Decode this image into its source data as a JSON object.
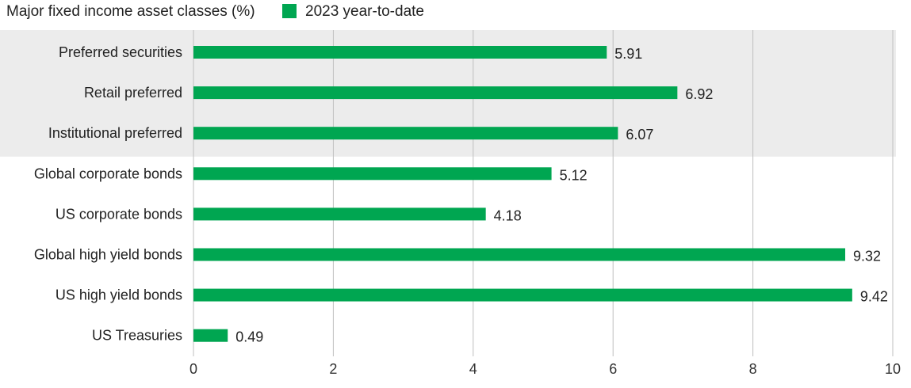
{
  "chart_data": {
    "type": "bar",
    "orientation": "horizontal",
    "title": "Major fixed income asset classes (%)",
    "xlabel": "",
    "ylabel": "",
    "xlim": [
      0,
      10
    ],
    "x_ticks": [
      0,
      2,
      4,
      6,
      8,
      10
    ],
    "grid": true,
    "legend_position": "top",
    "categories": [
      "Preferred securities",
      "Retail preferred",
      "Institutional preferred",
      "Global corporate bonds",
      "US corporate bonds",
      "Global high yield bonds",
      "US high yield bonds",
      "US Treasuries"
    ],
    "highlighted_categories": [
      "Preferred securities",
      "Retail preferred",
      "Institutional preferred"
    ],
    "series": [
      {
        "name": "2023 year-to-date",
        "color": "#00a651",
        "values": [
          5.91,
          6.92,
          6.07,
          5.12,
          4.18,
          9.32,
          9.42,
          0.49
        ]
      }
    ],
    "value_labels": [
      "5.91",
      "6.92",
      "6.07",
      "5.12",
      "4.18",
      "9.32",
      "9.42",
      "0.49"
    ],
    "highlight_band_color": "#ececec",
    "grid_color": "#bfbfbf"
  }
}
